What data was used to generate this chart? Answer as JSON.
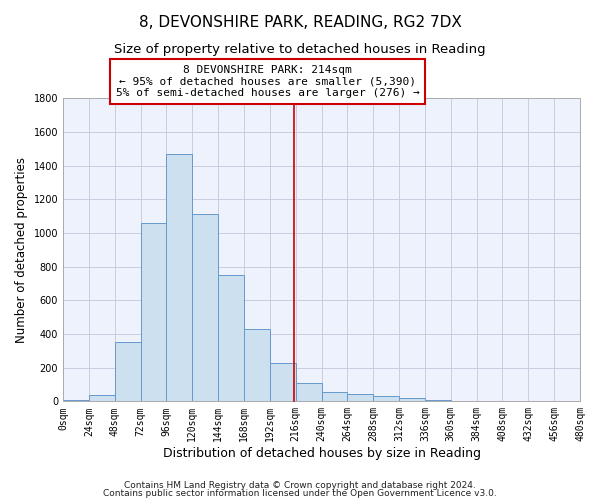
{
  "title": "8, DEVONSHIRE PARK, READING, RG2 7DX",
  "subtitle": "Size of property relative to detached houses in Reading",
  "xlabel": "Distribution of detached houses by size in Reading",
  "ylabel": "Number of detached properties",
  "bar_bins": [
    0,
    24,
    48,
    72,
    96,
    120,
    144,
    168,
    192,
    216,
    240,
    264,
    288,
    312,
    336,
    360,
    384,
    408,
    432,
    456,
    480
  ],
  "bar_values": [
    10,
    35,
    350,
    1060,
    1470,
    1110,
    750,
    430,
    225,
    110,
    55,
    45,
    30,
    20,
    5,
    2,
    0,
    0,
    0,
    0
  ],
  "bar_color": "#cde0f0",
  "bar_edge_color": "#6699cc",
  "marker_x": 214,
  "marker_line_color": "#cc0000",
  "ylim": [
    0,
    1800
  ],
  "yticks": [
    0,
    200,
    400,
    600,
    800,
    1000,
    1200,
    1400,
    1600,
    1800
  ],
  "xlim": [
    0,
    480
  ],
  "xtick_positions": [
    0,
    24,
    48,
    72,
    96,
    120,
    144,
    168,
    192,
    216,
    240,
    264,
    288,
    312,
    336,
    360,
    384,
    408,
    432,
    456,
    480
  ],
  "xtick_labels": [
    "0sqm",
    "24sqm",
    "48sqm",
    "72sqm",
    "96sqm",
    "120sqm",
    "144sqm",
    "168sqm",
    "192sqm",
    "216sqm",
    "240sqm",
    "264sqm",
    "288sqm",
    "312sqm",
    "336sqm",
    "360sqm",
    "384sqm",
    "408sqm",
    "432sqm",
    "456sqm",
    "480sqm"
  ],
  "annotation_line1": "8 DEVONSHIRE PARK: 214sqm",
  "annotation_line2": "← 95% of detached houses are smaller (5,390)",
  "annotation_line3": "5% of semi-detached houses are larger (276) →",
  "annotation_box_color": "#cc0000",
  "annotation_box_fill": "#ffffff",
  "footnote1": "Contains HM Land Registry data © Crown copyright and database right 2024.",
  "footnote2": "Contains public sector information licensed under the Open Government Licence v3.0.",
  "background_color": "#eef2fc",
  "grid_color": "#c8cce0",
  "title_fontsize": 11,
  "subtitle_fontsize": 9.5,
  "xlabel_fontsize": 9,
  "ylabel_fontsize": 8.5,
  "tick_fontsize": 7,
  "annotation_fontsize": 8,
  "footnote_fontsize": 6.5
}
